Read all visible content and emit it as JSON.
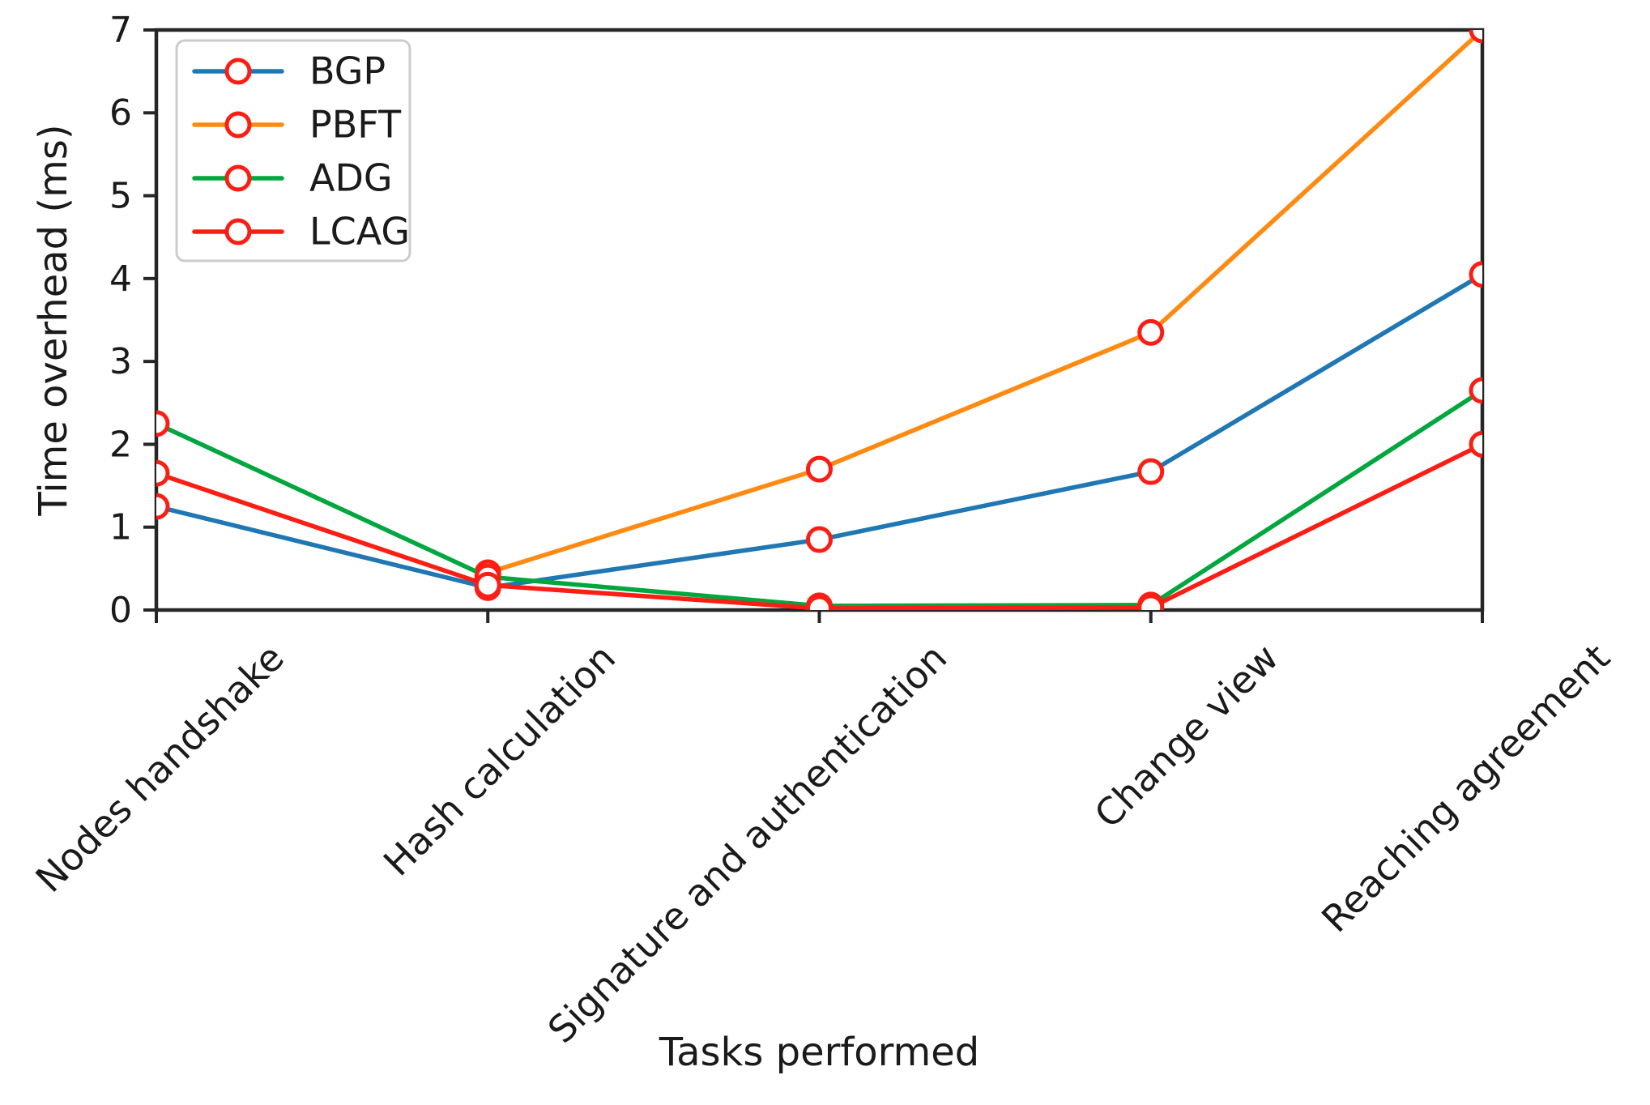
{
  "chart_data": {
    "type": "line",
    "title": "",
    "xlabel": "Tasks performed",
    "ylabel": "Time overhead (ms)",
    "categories": [
      "Nodes handshake",
      "Hash calculation",
      "Signature and authentication",
      "Change view",
      "Reaching agreement"
    ],
    "yticks": [
      0,
      1,
      2,
      3,
      4,
      5,
      6,
      7
    ],
    "ylim": [
      0,
      7
    ],
    "grid": false,
    "legend_position": "upper-left",
    "axis_color": "#262626",
    "marker": {
      "shape": "open-circle",
      "edge_color": "#fb1e14",
      "face_color": "#ffffff"
    },
    "series": [
      {
        "name": "BGP",
        "color": "#1f77b4",
        "values": [
          1.25,
          0.27,
          0.85,
          1.67,
          4.05
        ]
      },
      {
        "name": "PBFT",
        "color": "#ff8a12",
        "values": [
          null,
          0.45,
          1.7,
          3.35,
          7.0
        ]
      },
      {
        "name": "ADG",
        "color": "#00a73f",
        "values": [
          2.25,
          0.4,
          0.05,
          0.06,
          2.65
        ]
      },
      {
        "name": "LCAG",
        "color": "#fb1e14",
        "values": [
          1.65,
          0.3,
          0.02,
          0.03,
          2.0
        ]
      }
    ]
  }
}
